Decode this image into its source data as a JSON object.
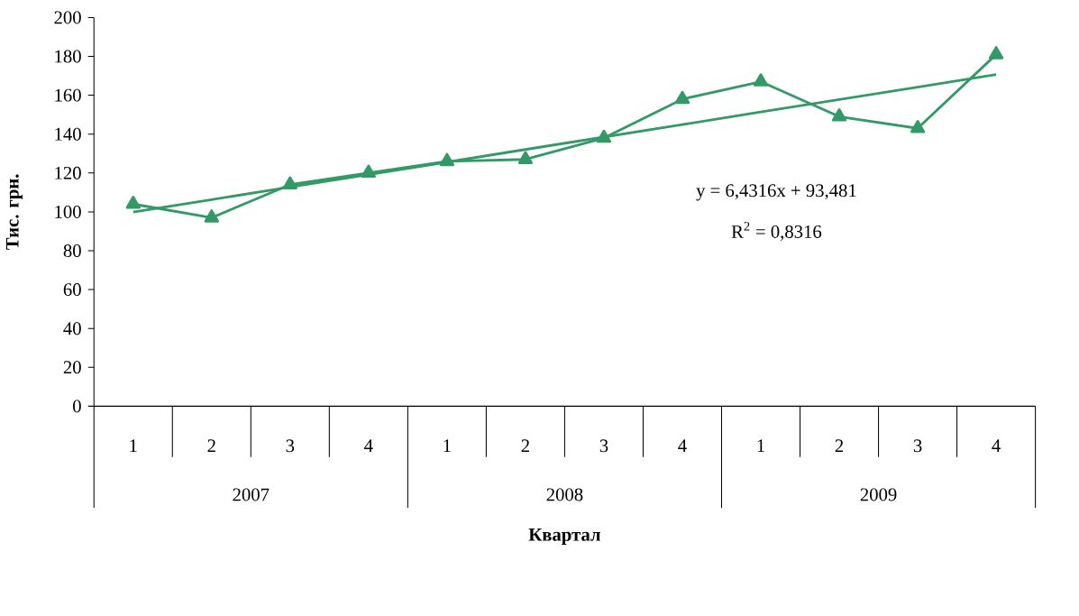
{
  "chart_data": {
    "type": "line",
    "xlabel": "Квартал",
    "ylabel": "Тис. грн.",
    "categories": [
      "1",
      "2",
      "3",
      "4",
      "1",
      "2",
      "3",
      "4",
      "1",
      "2",
      "3",
      "4"
    ],
    "series": [
      {
        "type": "line",
        "color": "#339966",
        "values": [
          104,
          97,
          114,
          120,
          126,
          127,
          138,
          158,
          167,
          149,
          143,
          181
        ]
      },
      {
        "type": "line",
        "color": "#339966",
        "marker": "none",
        "values": [
          99.9,
          106.3,
          112.8,
          119.2,
          125.6,
          132.1,
          138.5,
          144.9,
          151.4,
          157.8,
          164.2,
          170.7
        ]
      }
    ],
    "marker": "triangle",
    "ylim": [
      0,
      200
    ],
    "yticks": [
      0,
      20,
      40,
      60,
      80,
      100,
      120,
      140,
      160,
      180,
      200
    ],
    "annotations": [
      "y = 6,4316x + 93,481",
      "R$^{2}$ = 0,8316",
      "2007",
      "2008",
      "2009"
    ]
  }
}
